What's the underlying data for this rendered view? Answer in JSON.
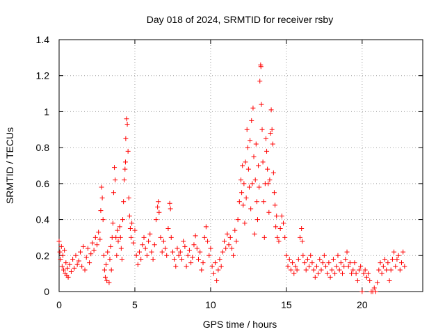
{
  "chart_data": {
    "type": "scatter",
    "title": "Day 018 of 2024, SRMTID for receiver rsby",
    "xlabel": "GPS time / hours",
    "ylabel": "SRMTID / TECUs",
    "xlim": [
      0,
      24
    ],
    "ylim": [
      0,
      1.4
    ],
    "xticks": [
      0,
      5,
      10,
      15,
      20
    ],
    "yticks": [
      0,
      0.2,
      0.4,
      0.6,
      0.8,
      1,
      1.2,
      1.4
    ],
    "xtick_labels": [
      "0",
      "5",
      "10",
      "15",
      "20"
    ],
    "ytick_labels": [
      "0",
      "0.2",
      "0.4",
      "0.6",
      "0.8",
      "1",
      "1.2",
      "1.4"
    ],
    "grid": true,
    "marker": "+",
    "color": "#ff0000",
    "series": [
      {
        "name": "SRMTID",
        "points": [
          [
            0.0,
            0.28
          ],
          [
            0.05,
            0.22
          ],
          [
            0.1,
            0.18
          ],
          [
            0.15,
            0.25
          ],
          [
            0.2,
            0.14
          ],
          [
            0.25,
            0.2
          ],
          [
            0.3,
            0.12
          ],
          [
            0.35,
            0.23
          ],
          [
            0.4,
            0.1
          ],
          [
            0.45,
            0.16
          ],
          [
            0.5,
            0.09
          ],
          [
            0.55,
            0.13
          ],
          [
            0.6,
            0.08
          ],
          [
            0.7,
            0.15
          ],
          [
            0.8,
            0.11
          ],
          [
            0.9,
            0.18
          ],
          [
            1.0,
            0.13
          ],
          [
            1.1,
            0.2
          ],
          [
            1.2,
            0.15
          ],
          [
            1.3,
            0.17
          ],
          [
            1.4,
            0.22
          ],
          [
            1.5,
            0.14
          ],
          [
            1.6,
            0.25
          ],
          [
            1.7,
            0.12
          ],
          [
            1.8,
            0.19
          ],
          [
            1.9,
            0.24
          ],
          [
            2.0,
            0.16
          ],
          [
            2.1,
            0.21
          ],
          [
            2.2,
            0.27
          ],
          [
            2.3,
            0.23
          ],
          [
            2.4,
            0.3
          ],
          [
            2.5,
            0.26
          ],
          [
            2.6,
            0.33
          ],
          [
            2.7,
            0.29
          ],
          [
            2.75,
            0.45
          ],
          [
            2.8,
            0.58
          ],
          [
            2.85,
            0.52
          ],
          [
            2.9,
            0.4
          ],
          [
            2.95,
            0.2
          ],
          [
            3.0,
            0.12
          ],
          [
            3.05,
            0.08
          ],
          [
            3.1,
            0.15
          ],
          [
            3.15,
            0.06
          ],
          [
            3.2,
            0.22
          ],
          [
            3.3,
            0.05
          ],
          [
            3.35,
            0.18
          ],
          [
            3.4,
            0.25
          ],
          [
            3.45,
            0.12
          ],
          [
            3.5,
            0.3
          ],
          [
            3.55,
            0.38
          ],
          [
            3.6,
            0.55
          ],
          [
            3.65,
            0.69
          ],
          [
            3.7,
            0.62
          ],
          [
            3.75,
            0.3
          ],
          [
            3.8,
            0.2
          ],
          [
            3.85,
            0.34
          ],
          [
            3.9,
            0.28
          ],
          [
            4.0,
            0.36
          ],
          [
            4.05,
            0.3
          ],
          [
            4.1,
            0.24
          ],
          [
            4.15,
            0.18
          ],
          [
            4.2,
            0.4
          ],
          [
            4.25,
            0.5
          ],
          [
            4.3,
            0.62
          ],
          [
            4.35,
            0.68
          ],
          [
            4.38,
            0.72
          ],
          [
            4.4,
            0.85
          ],
          [
            4.45,
            0.96
          ],
          [
            4.5,
            0.93
          ],
          [
            4.55,
            0.78
          ],
          [
            4.6,
            0.52
          ],
          [
            4.65,
            0.42
          ],
          [
            4.7,
            0.35
          ],
          [
            4.75,
            0.3
          ],
          [
            4.8,
            0.38
          ],
          [
            4.9,
            0.27
          ],
          [
            5.0,
            0.34
          ],
          [
            5.1,
            0.2
          ],
          [
            5.2,
            0.15
          ],
          [
            5.3,
            0.22
          ],
          [
            5.4,
            0.18
          ],
          [
            5.5,
            0.26
          ],
          [
            5.6,
            0.3
          ],
          [
            5.7,
            0.24
          ],
          [
            5.8,
            0.2
          ],
          [
            5.9,
            0.28
          ],
          [
            6.0,
            0.32
          ],
          [
            6.1,
            0.22
          ],
          [
            6.2,
            0.18
          ],
          [
            6.3,
            0.26
          ],
          [
            6.4,
            0.4
          ],
          [
            6.5,
            0.47
          ],
          [
            6.55,
            0.5
          ],
          [
            6.6,
            0.44
          ],
          [
            6.7,
            0.3
          ],
          [
            6.8,
            0.22
          ],
          [
            6.9,
            0.28
          ],
          [
            7.0,
            0.24
          ],
          [
            7.1,
            0.2
          ],
          [
            7.2,
            0.35
          ],
          [
            7.3,
            0.49
          ],
          [
            7.35,
            0.46
          ],
          [
            7.4,
            0.3
          ],
          [
            7.5,
            0.22
          ],
          [
            7.6,
            0.18
          ],
          [
            7.7,
            0.14
          ],
          [
            7.8,
            0.24
          ],
          [
            7.9,
            0.2
          ],
          [
            8.0,
            0.22
          ],
          [
            8.1,
            0.18
          ],
          [
            8.2,
            0.28
          ],
          [
            8.3,
            0.25
          ],
          [
            8.4,
            0.14
          ],
          [
            8.5,
            0.2
          ],
          [
            8.6,
            0.23
          ],
          [
            8.7,
            0.16
          ],
          [
            8.8,
            0.19
          ],
          [
            8.9,
            0.26
          ],
          [
            9.0,
            0.31
          ],
          [
            9.1,
            0.24
          ],
          [
            9.2,
            0.18
          ],
          [
            9.3,
            0.22
          ],
          [
            9.4,
            0.12
          ],
          [
            9.5,
            0.16
          ],
          [
            9.6,
            0.3
          ],
          [
            9.7,
            0.36
          ],
          [
            9.8,
            0.28
          ],
          [
            9.9,
            0.2
          ],
          [
            10.0,
            0.24
          ],
          [
            10.1,
            0.14
          ],
          [
            10.2,
            0.1
          ],
          [
            10.3,
            0.16
          ],
          [
            10.4,
            0.06
          ],
          [
            10.5,
            0.12
          ],
          [
            10.6,
            0.18
          ],
          [
            10.7,
            0.14
          ],
          [
            10.8,
            0.22
          ],
          [
            10.9,
            0.28
          ],
          [
            11.0,
            0.24
          ],
          [
            11.1,
            0.32
          ],
          [
            11.2,
            0.26
          ],
          [
            11.3,
            0.3
          ],
          [
            11.4,
            0.24
          ],
          [
            11.5,
            0.2
          ],
          [
            11.6,
            0.34
          ],
          [
            11.7,
            0.28
          ],
          [
            11.8,
            0.4
          ],
          [
            11.9,
            0.5
          ],
          [
            12.0,
            0.62
          ],
          [
            12.05,
            0.55
          ],
          [
            12.1,
            0.7
          ],
          [
            12.15,
            0.48
          ],
          [
            12.2,
            0.6
          ],
          [
            12.25,
            0.38
          ],
          [
            12.3,
            0.72
          ],
          [
            12.35,
            0.52
          ],
          [
            12.4,
            0.9
          ],
          [
            12.45,
            0.8
          ],
          [
            12.5,
            0.68
          ],
          [
            12.55,
            0.58
          ],
          [
            12.6,
            0.84
          ],
          [
            12.65,
            0.46
          ],
          [
            12.7,
            0.95
          ],
          [
            12.75,
            0.6
          ],
          [
            12.8,
            1.02
          ],
          [
            12.85,
            0.75
          ],
          [
            12.9,
            0.32
          ],
          [
            12.95,
            0.62
          ],
          [
            13.0,
            0.82
          ],
          [
            13.05,
            0.5
          ],
          [
            13.1,
            0.4
          ],
          [
            13.15,
            0.7
          ],
          [
            13.2,
            0.58
          ],
          [
            13.25,
            1.17
          ],
          [
            13.3,
            1.26
          ],
          [
            13.32,
            1.25
          ],
          [
            13.35,
            1.04
          ],
          [
            13.4,
            0.9
          ],
          [
            13.45,
            0.72
          ],
          [
            13.5,
            0.5
          ],
          [
            13.55,
            0.3
          ],
          [
            13.6,
            0.6
          ],
          [
            13.65,
            0.85
          ],
          [
            13.7,
            0.78
          ],
          [
            13.75,
            0.68
          ],
          [
            13.8,
            0.6
          ],
          [
            13.85,
            0.44
          ],
          [
            13.9,
            0.62
          ],
          [
            13.95,
            0.88
          ],
          [
            14.0,
            1.01
          ],
          [
            14.05,
            0.9
          ],
          [
            14.1,
            0.82
          ],
          [
            14.15,
            0.66
          ],
          [
            14.2,
            0.55
          ],
          [
            14.25,
            0.48
          ],
          [
            14.3,
            0.36
          ],
          [
            14.35,
            0.42
          ],
          [
            14.4,
            0.3
          ],
          [
            14.5,
            0.28
          ],
          [
            14.6,
            0.35
          ],
          [
            14.7,
            0.42
          ],
          [
            14.8,
            0.38
          ],
          [
            14.9,
            0.3
          ],
          [
            15.0,
            0.2
          ],
          [
            15.1,
            0.14
          ],
          [
            15.2,
            0.18
          ],
          [
            15.3,
            0.12
          ],
          [
            15.4,
            0.16
          ],
          [
            15.5,
            0.1
          ],
          [
            15.6,
            0.14
          ],
          [
            15.7,
            0.12
          ],
          [
            15.8,
            0.18
          ],
          [
            15.9,
            0.3
          ],
          [
            16.0,
            0.35
          ],
          [
            16.05,
            0.28
          ],
          [
            16.1,
            0.2
          ],
          [
            16.2,
            0.16
          ],
          [
            16.3,
            0.12
          ],
          [
            16.4,
            0.18
          ],
          [
            16.5,
            0.14
          ],
          [
            16.6,
            0.2
          ],
          [
            16.7,
            0.16
          ],
          [
            16.8,
            0.12
          ],
          [
            16.9,
            0.08
          ],
          [
            17.0,
            0.14
          ],
          [
            17.1,
            0.1
          ],
          [
            17.2,
            0.18
          ],
          [
            17.3,
            0.12
          ],
          [
            17.4,
            0.16
          ],
          [
            17.5,
            0.2
          ],
          [
            17.6,
            0.14
          ],
          [
            17.7,
            0.1
          ],
          [
            17.8,
            0.16
          ],
          [
            17.9,
            0.08
          ],
          [
            18.0,
            0.12
          ],
          [
            18.1,
            0.18
          ],
          [
            18.2,
            0.1
          ],
          [
            18.3,
            0.14
          ],
          [
            18.4,
            0.2
          ],
          [
            18.5,
            0.12
          ],
          [
            18.6,
            0.16
          ],
          [
            18.7,
            0.1
          ],
          [
            18.8,
            0.14
          ],
          [
            18.9,
            0.18
          ],
          [
            19.0,
            0.22
          ],
          [
            19.1,
            0.14
          ],
          [
            19.2,
            0.16
          ],
          [
            19.3,
            0.1
          ],
          [
            19.4,
            0.12
          ],
          [
            19.5,
            0.16
          ],
          [
            19.6,
            0.1
          ],
          [
            19.7,
            0.06
          ],
          [
            19.8,
            0.12
          ],
          [
            19.9,
            0.14
          ],
          [
            20.0,
            0.0
          ],
          [
            20.1,
            0.1
          ],
          [
            20.2,
            0.12
          ],
          [
            20.3,
            0.08
          ],
          [
            20.4,
            0.1
          ],
          [
            20.5,
            0.06
          ],
          [
            20.6,
            0.0
          ],
          [
            20.7,
            0.0
          ],
          [
            20.8,
            0.02
          ],
          [
            20.9,
            0.0
          ],
          [
            21.0,
            0.05
          ],
          [
            21.1,
            0.12
          ],
          [
            21.2,
            0.16
          ],
          [
            21.3,
            0.1
          ],
          [
            21.4,
            0.14
          ],
          [
            21.5,
            0.18
          ],
          [
            21.6,
            0.12
          ],
          [
            21.7,
            0.16
          ],
          [
            21.8,
            0.06
          ],
          [
            21.9,
            0.12
          ],
          [
            22.0,
            0.18
          ],
          [
            22.1,
            0.22
          ],
          [
            22.2,
            0.14
          ],
          [
            22.3,
            0.18
          ],
          [
            22.4,
            0.2
          ],
          [
            22.5,
            0.12
          ],
          [
            22.6,
            0.16
          ],
          [
            22.7,
            0.22
          ],
          [
            22.8,
            0.14
          ]
        ]
      }
    ]
  }
}
